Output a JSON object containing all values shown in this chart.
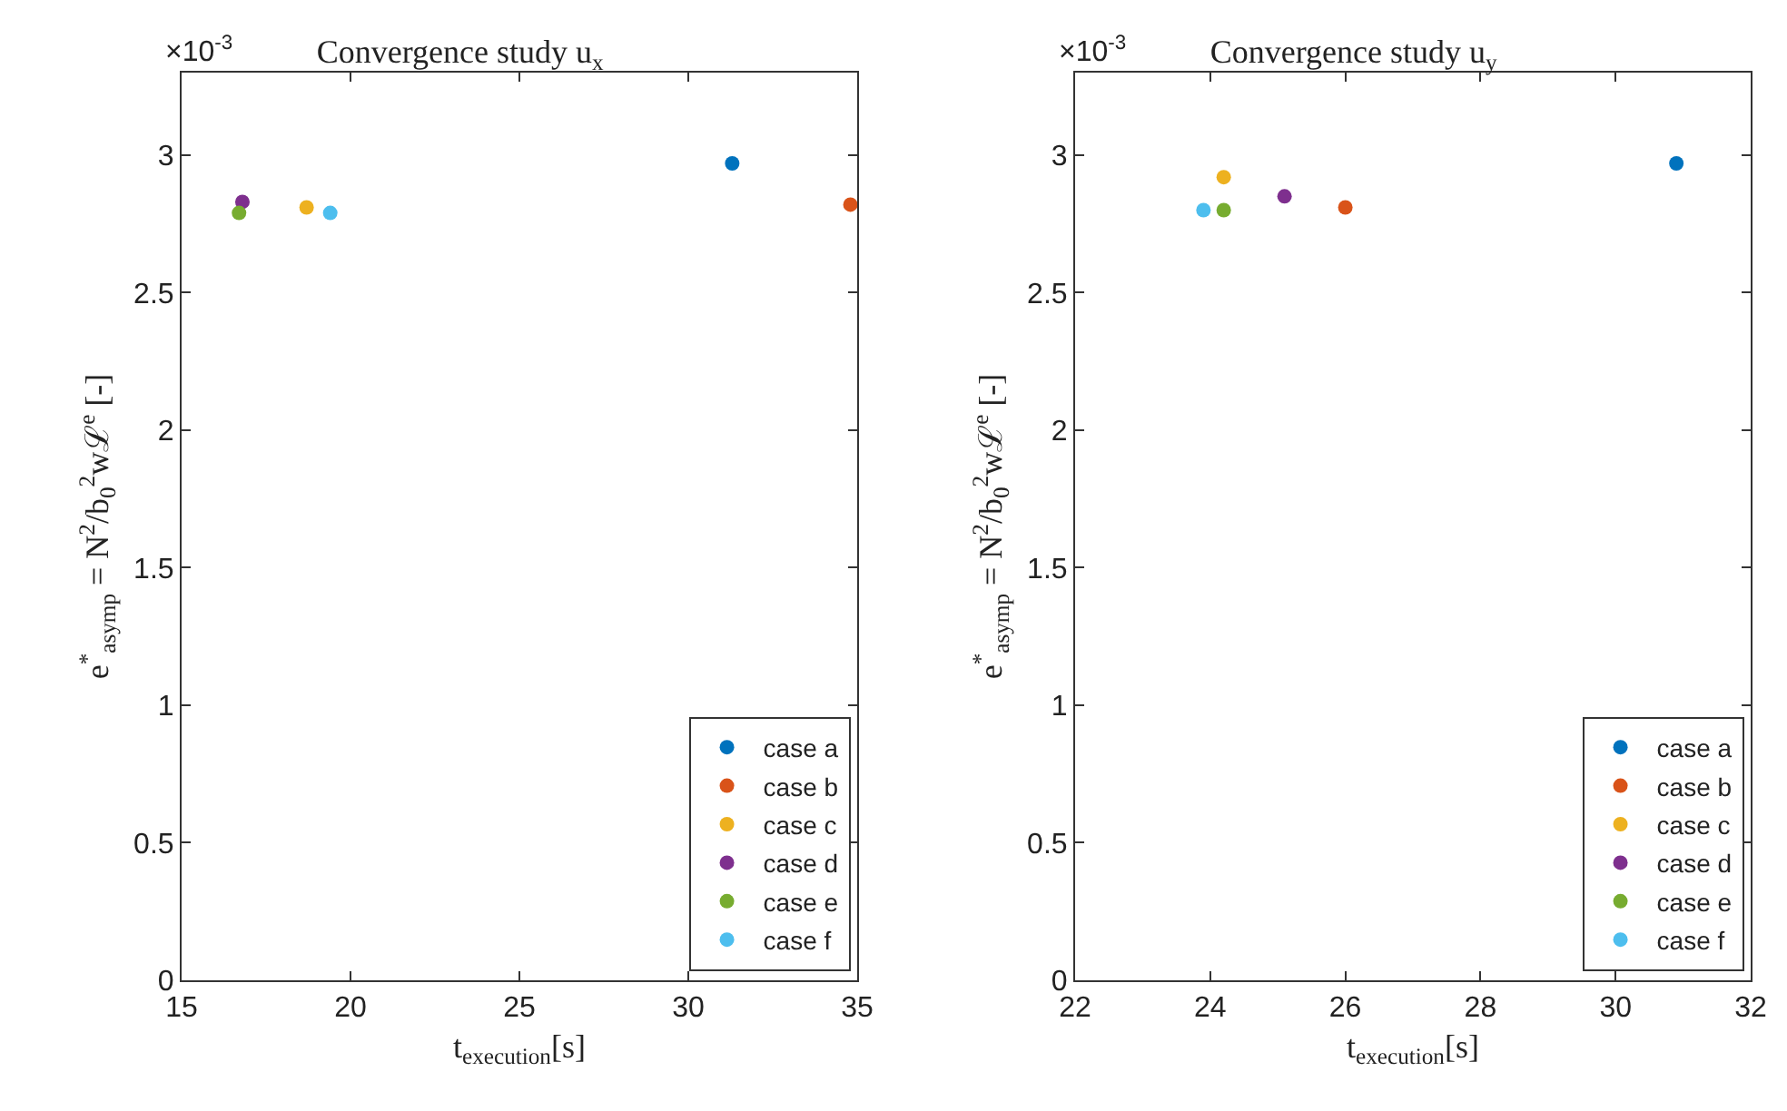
{
  "chart_data": [
    {
      "type": "scatter",
      "title": "Convergence study u$_{x}$",
      "xlabel": "t$_{execution}$[s]",
      "ylabel": "e$^{*}$$_{asymp}$ = N$^{2}$/b$_{0}$$^{2}$wℒ$^{e}$ [-]",
      "annotations": [
        "×10$^{-3}$"
      ],
      "marker": "circle",
      "legend": "bottom right",
      "grid": false,
      "xlim": [
        15,
        35
      ],
      "xticks": [
        15,
        20,
        25,
        30,
        35
      ],
      "ylim": [
        0,
        3.3
      ],
      "yticks": [
        0,
        0.5,
        1,
        1.5,
        2,
        2.5,
        3
      ],
      "series": [
        {
          "name": "case a",
          "color": "#0072bd",
          "x": [
            31.3
          ],
          "values": [
            2.97
          ]
        },
        {
          "name": "case b",
          "color": "#d95319",
          "x": [
            34.8
          ],
          "values": [
            2.82
          ]
        },
        {
          "name": "case c",
          "color": "#edb120",
          "x": [
            18.7
          ],
          "values": [
            2.81
          ]
        },
        {
          "name": "case d",
          "color": "#7e2f8e",
          "x": [
            16.8
          ],
          "values": [
            2.83
          ]
        },
        {
          "name": "case e",
          "color": "#77ac30",
          "x": [
            16.7
          ],
          "values": [
            2.79
          ]
        },
        {
          "name": "case f",
          "color": "#4dbeee",
          "x": [
            19.4
          ],
          "values": [
            2.79
          ]
        }
      ]
    },
    {
      "type": "scatter",
      "title": "Convergence study u$_{y}$",
      "xlabel": "t$_{execution}$[s]",
      "ylabel": "e$^{*}$$_{asymp}$ = N$^{2}$/b$_{0}$$^{2}$wℒ$^{e}$ [-]",
      "annotations": [
        "×10$^{-3}$"
      ],
      "marker": "circle",
      "legend": "bottom right",
      "grid": false,
      "xlim": [
        22,
        32
      ],
      "xticks": [
        22,
        24,
        26,
        28,
        30,
        32
      ],
      "ylim": [
        0,
        3.3
      ],
      "yticks": [
        0,
        0.5,
        1,
        1.5,
        2,
        2.5,
        3
      ],
      "series": [
        {
          "name": "case a",
          "color": "#0072bd",
          "x": [
            30.9
          ],
          "values": [
            2.97
          ]
        },
        {
          "name": "case b",
          "color": "#d95319",
          "x": [
            26.0
          ],
          "values": [
            2.81
          ]
        },
        {
          "name": "case c",
          "color": "#edb120",
          "x": [
            24.2
          ],
          "values": [
            2.92
          ]
        },
        {
          "name": "case d",
          "color": "#7e2f8e",
          "x": [
            25.1
          ],
          "values": [
            2.85
          ]
        },
        {
          "name": "case e",
          "color": "#77ac30",
          "x": [
            24.2
          ],
          "values": [
            2.8
          ]
        },
        {
          "name": "case f",
          "color": "#4dbeee",
          "x": [
            23.9
          ],
          "values": [
            2.8
          ]
        }
      ]
    }
  ]
}
